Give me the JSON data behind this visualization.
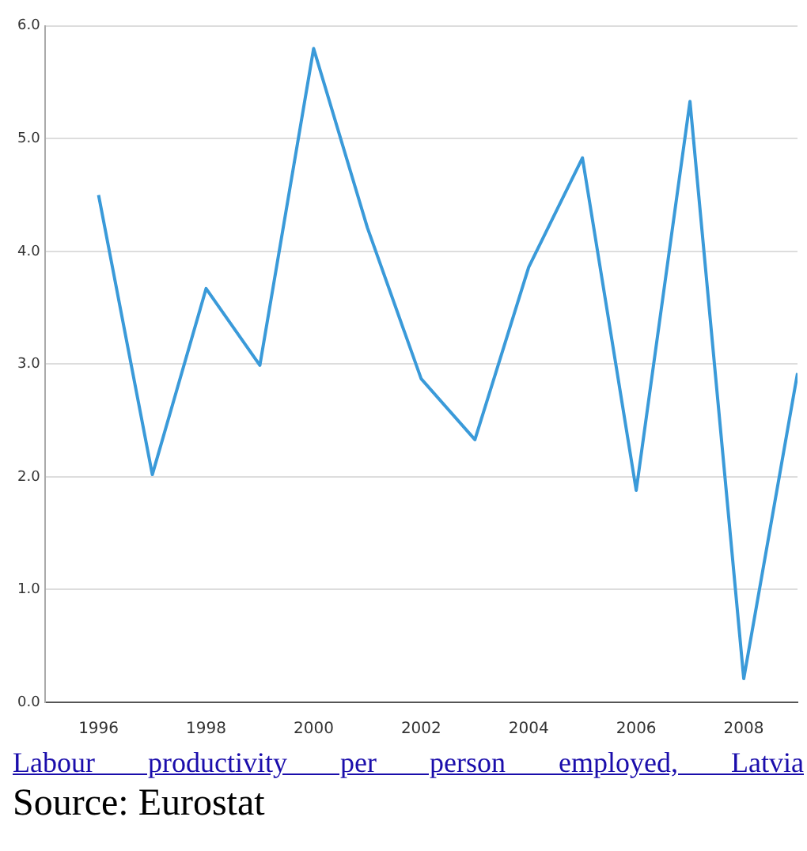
{
  "chart_data": {
    "type": "line",
    "x": [
      1996,
      1997,
      1998,
      1999,
      2000,
      2001,
      2002,
      2003,
      2004,
      2005,
      2006,
      2007,
      2008,
      2009
    ],
    "values": [
      4.5,
      2.02,
      3.67,
      2.99,
      5.8,
      4.21,
      2.87,
      2.33,
      3.86,
      4.83,
      1.88,
      5.33,
      0.21,
      2.92
    ],
    "color": "#3a9ad9",
    "xlim": [
      1995,
      2009
    ],
    "xticks": [
      1996,
      1998,
      2000,
      2002,
      2004,
      2006,
      2008
    ],
    "ylim": [
      0,
      6
    ],
    "yticks": [
      {
        "value": 0,
        "label": "0.0"
      },
      {
        "value": 1,
        "label": "1.0"
      },
      {
        "value": 2,
        "label": "2.0"
      },
      {
        "value": 3,
        "label": "3.0"
      },
      {
        "value": 4,
        "label": "4.0"
      },
      {
        "value": 5,
        "label": "5.0"
      },
      {
        "value": 6,
        "label": "6.0"
      }
    ],
    "grid": "y",
    "marker": "none",
    "annotations": [
      "Labour productivity per person employed, Latvia",
      "Source: Eurostat"
    ]
  }
}
